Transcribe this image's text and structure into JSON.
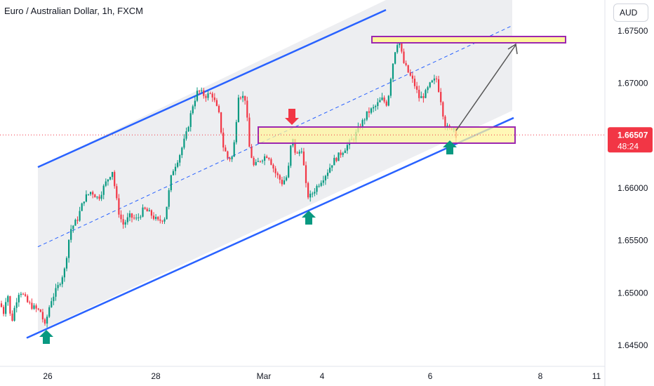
{
  "header": {
    "title": "Euro / Australian Dollar, 1h, FXCM"
  },
  "currency_button": {
    "label": "AUD"
  },
  "current_price": {
    "value": "1.66507",
    "timer": "48:24"
  },
  "colors": {
    "up": "#089981",
    "down": "#f23645",
    "channel": "#2962ff",
    "zone_fill": "#fff59d",
    "zone_border": "#9c27b0",
    "price_badge": "#f23645",
    "arrow_up": "#089981",
    "arrow_down": "#f23645",
    "projection": "#555555"
  },
  "chart_data": {
    "type": "candlestick",
    "symbol": "Euro / Australian Dollar",
    "interval": "1h",
    "source": "FXCM",
    "y_axis": {
      "side": "right",
      "min": 1.644,
      "max": 1.676,
      "ticks": [
        "1.67500",
        "1.67000",
        "1.66500",
        "1.66000",
        "1.65500",
        "1.65000",
        "1.64500"
      ]
    },
    "x_axis": {
      "ticks": [
        "26",
        "28",
        "Mar",
        "4",
        "6",
        "8",
        "11"
      ]
    },
    "price_path": [
      [
        0,
        1.649
      ],
      [
        6,
        1.648
      ],
      [
        10,
        1.6505
      ],
      [
        16,
        1.647
      ],
      [
        22,
        1.649
      ],
      [
        28,
        1.6503
      ],
      [
        40,
        1.649
      ],
      [
        50,
        1.6485
      ],
      [
        58,
        1.6482
      ],
      [
        64,
        1.6468
      ],
      [
        72,
        1.6492
      ],
      [
        82,
        1.6505
      ],
      [
        92,
        1.6522
      ],
      [
        100,
        1.656
      ],
      [
        110,
        1.657
      ],
      [
        120,
        1.659
      ],
      [
        130,
        1.6597
      ],
      [
        140,
        1.659
      ],
      [
        150,
        1.6604
      ],
      [
        160,
        1.6617
      ],
      [
        168,
        1.658
      ],
      [
        175,
        1.6565
      ],
      [
        185,
        1.6573
      ],
      [
        195,
        1.657
      ],
      [
        205,
        1.658
      ],
      [
        215,
        1.6575
      ],
      [
        225,
        1.6568
      ],
      [
        235,
        1.6572
      ],
      [
        245,
        1.6615
      ],
      [
        255,
        1.663
      ],
      [
        265,
        1.665
      ],
      [
        275,
        1.668
      ],
      [
        282,
        1.6693
      ],
      [
        292,
        1.6688
      ],
      [
        302,
        1.669
      ],
      [
        312,
        1.667
      ],
      [
        318,
        1.664
      ],
      [
        325,
        1.6628
      ],
      [
        332,
        1.663
      ],
      [
        340,
        1.669
      ],
      [
        350,
        1.6685
      ],
      [
        355,
        1.664
      ],
      [
        362,
        1.662
      ],
      [
        372,
        1.6628
      ],
      [
        382,
        1.6632
      ],
      [
        392,
        1.6615
      ],
      [
        402,
        1.6605
      ],
      [
        410,
        1.6612
      ],
      [
        416,
        1.665
      ],
      [
        422,
        1.663
      ],
      [
        430,
        1.6638
      ],
      [
        436,
        1.6602
      ],
      [
        440,
        1.659
      ],
      [
        448,
        1.6598
      ],
      [
        456,
        1.6606
      ],
      [
        466,
        1.6615
      ],
      [
        474,
        1.6625
      ],
      [
        484,
        1.6632
      ],
      [
        494,
        1.664
      ],
      [
        504,
        1.6648
      ],
      [
        514,
        1.666
      ],
      [
        524,
        1.6672
      ],
      [
        534,
        1.6677
      ],
      [
        544,
        1.6685
      ],
      [
        552,
        1.668
      ],
      [
        558,
        1.6712
      ],
      [
        564,
        1.6735
      ],
      [
        568,
        1.6742
      ],
      [
        575,
        1.672
      ],
      [
        582,
        1.671
      ],
      [
        590,
        1.67
      ],
      [
        598,
        1.6685
      ],
      [
        606,
        1.669
      ],
      [
        614,
        1.67
      ],
      [
        622,
        1.6704
      ],
      [
        628,
        1.6685
      ],
      [
        634,
        1.666
      ],
      [
        640,
        1.6655
      ],
      [
        646,
        1.666
      ],
      [
        650,
        1.66507
      ]
    ],
    "annotations": {
      "channel_upper": [
        [
          -19,
          1.662
        ],
        [
          560,
          1.6771
        ]
      ],
      "channel_lower": [
        [
          -19,
          1.6466
        ],
        [
          686,
          1.6672
        ]
      ],
      "channel_mid": [
        [
          -19,
          1.6551
        ],
        [
          686,
          1.67571
        ]
      ],
      "resistance_zone": {
        "x1": 530,
        "x2": 806,
        "y1": 1.6744,
        "y2": 1.6738
      },
      "support_zone": {
        "x1": 368,
        "x2": 734,
        "y1": 1.6657,
        "y2": 1.6641
      },
      "projection_arrow": {
        "from": [
          650,
          1.6655
        ],
        "to": [
          736,
          1.6737
        ]
      },
      "up_arrows": [
        [
          66,
          1.6466
        ],
        [
          440,
          1.659
        ],
        [
          641,
          1.6648
        ]
      ],
      "down_arrows": [
        [
          416,
          1.6652
        ]
      ]
    },
    "current_price_line": 1.66507
  }
}
